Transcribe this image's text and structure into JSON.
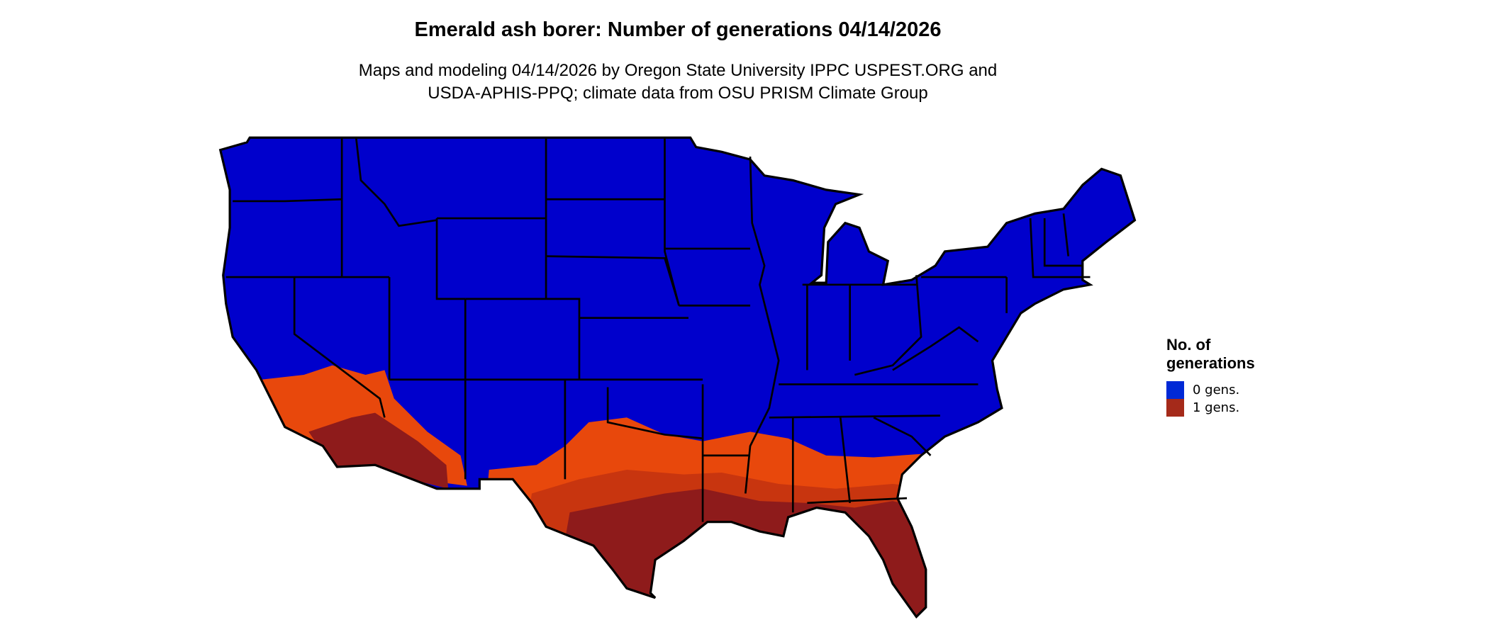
{
  "title": "Emerald ash borer: Number of generations 04/14/2026",
  "subtitle_line1": "Maps and modeling 04/14/2026 by Oregon State University IPPC USPEST.ORG and",
  "subtitle_line2": "USDA-APHIS-PPQ; climate data from OSU PRISM Climate Group",
  "legend": {
    "title_line1": "No. of",
    "title_line2": "generations",
    "items": [
      {
        "label": "0 gens.",
        "color": "#0029D6"
      },
      {
        "label": "1 gens.",
        "color": "#A52A1A"
      }
    ]
  },
  "map_colors": {
    "zero_gens": "#0000CC",
    "one_gen_dark": "#8E1B1B",
    "one_gen_orange": "#E8480C",
    "one_gen_mid": "#C8350F",
    "borders": "#000000"
  },
  "chart_data": {
    "type": "choropleth-map",
    "region": "Contiguous United States",
    "categories": [
      "0 gens.",
      "1 gens."
    ]
  }
}
